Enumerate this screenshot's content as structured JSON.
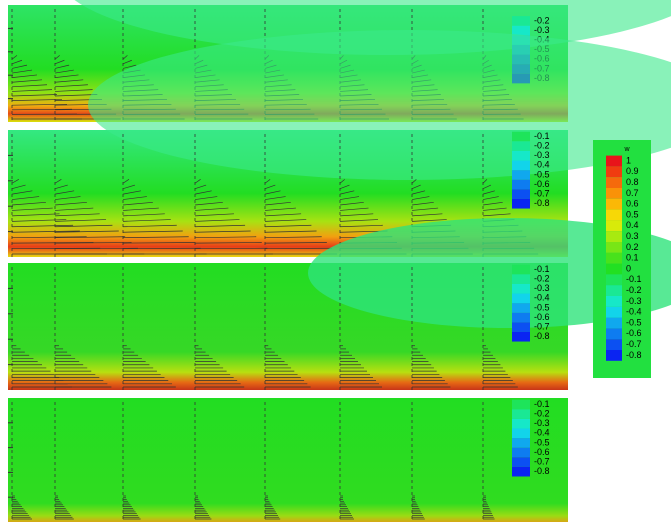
{
  "colorbar": {
    "title": "w",
    "levels": [
      {
        "label": "1",
        "color": "#e8141a"
      },
      {
        "label": "0.9",
        "color": "#f03c10"
      },
      {
        "label": "0.8",
        "color": "#f56a0c"
      },
      {
        "label": "0.7",
        "color": "#f99208"
      },
      {
        "label": "0.6",
        "color": "#fbb806"
      },
      {
        "label": "0.5",
        "color": "#f7d806"
      },
      {
        "label": "0.4",
        "color": "#d8ea0a"
      },
      {
        "label": "0.3",
        "color": "#a8ea10"
      },
      {
        "label": "0.2",
        "color": "#78e616"
      },
      {
        "label": "0.1",
        "color": "#48e21c"
      },
      {
        "label": "0",
        "color": "#22e022"
      },
      {
        "label": "-0.1",
        "color": "#1ee45a"
      },
      {
        "label": "-0.2",
        "color": "#1ae894"
      },
      {
        "label": "-0.3",
        "color": "#16e8c8"
      },
      {
        "label": "-0.4",
        "color": "#12d4ea"
      },
      {
        "label": "-0.5",
        "color": "#10a8ee"
      },
      {
        "label": "-0.6",
        "color": "#0e7cf0"
      },
      {
        "label": "-0.7",
        "color": "#0c50f2"
      },
      {
        "label": "-0.8",
        "color": "#0a24f2"
      }
    ]
  },
  "panels": [
    {
      "legend": [
        "-0.2",
        "-0.3",
        "-0.4",
        "-0.5",
        "-0.6",
        "-0.7",
        "-0.8"
      ]
    },
    {
      "legend": [
        "-0.1",
        "-0.2",
        "-0.3",
        "-0.4",
        "-0.5",
        "-0.6",
        "-0.7",
        "-0.8"
      ]
    },
    {
      "legend": [
        "-0.1",
        "-0.2",
        "-0.3",
        "-0.4",
        "-0.5",
        "-0.6",
        "-0.7",
        "-0.8"
      ]
    },
    {
      "legend": [
        "-0.1",
        "-0.2",
        "-0.3",
        "-0.4",
        "-0.5",
        "-0.6",
        "-0.7",
        "-0.8"
      ]
    }
  ]
}
